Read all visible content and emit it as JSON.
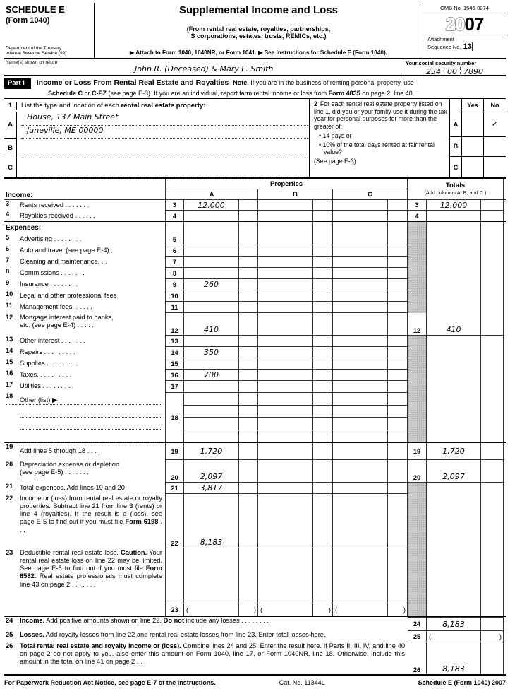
{
  "header": {
    "schedule": "SCHEDULE E",
    "form": "(Form 1040)",
    "dept1": "Department of the Treasury",
    "dept2": "Internal Revenue Service    (99)",
    "title": "Supplemental Income and Loss",
    "subtitle1": "(From rental real estate, royalties, partnerships,",
    "subtitle2": "S corporations, estates, trusts, REMICs, etc.)",
    "attach_line": "▶ Attach to Form 1040, 1040NR, or Form 1041.    ▶ See Instructions for Schedule E (Form 1040).",
    "omb": "OMB No. 1545-0074",
    "year_light": "20",
    "year_bold": "07",
    "attachment": "Attachment",
    "sequence": "Sequence No.",
    "sequence_no": "13"
  },
  "name_row": {
    "label": "Name(s) shown on return",
    "value": "John R. (Deceased) & Mary L. Smith",
    "ssn_label": "Your social security number",
    "ssn1": "234",
    "ssn2": "00",
    "ssn3": "7890"
  },
  "part1": {
    "badge": "Part I",
    "title": "Income or Loss From Rental Real Estate and Royalties",
    "note_line1_segs": [
      {
        "t": "Note.",
        "b": true
      },
      {
        "t": " If you are in the business of renting personal property, use"
      }
    ],
    "note_line2_segs": [
      {
        "t": "Schedule C",
        "b": true
      },
      {
        "t": " or "
      },
      {
        "t": "C-EZ",
        "b": true
      },
      {
        "t": " (see page E-3). If you are an individual, report farm rental income or loss from "
      },
      {
        "t": "Form 4835",
        "b": true
      },
      {
        "t": " on page 2, line 40."
      }
    ]
  },
  "property_section": {
    "line1_num": "1",
    "line1_segs": [
      {
        "t": "List the type and location of each "
      },
      {
        "t": "rental real estate property:",
        "b": true
      }
    ],
    "rowA": {
      "letter": "A",
      "line1": "House, 137 Main Street",
      "line2": "Juneville, ME 00000"
    },
    "rowB": {
      "letter": "B"
    },
    "rowC": {
      "letter": "C"
    },
    "q2_num": "2",
    "q2_text": "For each rental real estate property listed on line 1, did you or your family use it during the tax year for personal purposes for more than the greater of:",
    "bullet1": "• 14 days or",
    "bullet2": "• 10% of the total days rented at fair rental value?",
    "see_note": "(See page E-3)",
    "yes_label": "Yes",
    "no_label": "No",
    "check_a_no": "✓",
    "yn_a": "A",
    "yn_b": "B",
    "yn_c": "C"
  },
  "table": {
    "properties_header": "Properties",
    "totals_title": "Totals",
    "totals_sub": "(Add columns A, B, and C.)",
    "col_a": "A",
    "col_b": "B",
    "col_c": "C",
    "income_label": "Income:",
    "expenses_label": "Expenses:",
    "paren_open": "(",
    "paren_close": ")",
    "rows": {
      "r3": {
        "num": "3",
        "label": "Rents received .   .   .   .   .   .   .",
        "a": "12,000",
        "total": "12,000"
      },
      "r4": {
        "num": "4",
        "label": "Royalties received  .   .   .   .   .   ."
      },
      "r5": {
        "num": "5",
        "label": "Advertising .   .   .   .   .   .   .   ."
      },
      "r6": {
        "num": "6",
        "label": "Auto and travel (see page E-4)   ."
      },
      "r7": {
        "num": "7",
        "label": "Cleaning and maintenance.   .   ."
      },
      "r8": {
        "num": "8",
        "label": "Commissions  .   .   .   .   .   .   ."
      },
      "r9": {
        "num": "9",
        "label": "Insurance   .   .   .   .   .   .   .   .",
        "a": "260"
      },
      "r10": {
        "num": "10",
        "label": "Legal and other professional fees"
      },
      "r11": {
        "num": "11",
        "label": "Management fees.   .   .   .   .   ."
      },
      "r12": {
        "num": "12",
        "label": "Mortgage interest paid to banks,",
        "label2": "etc. (see page E-4)   .   .   .   .   .",
        "a": "410",
        "total": "410"
      },
      "r13": {
        "num": "13",
        "label": "Other interest   .   .   .   .   .   .   ."
      },
      "r14": {
        "num": "14",
        "label": "Repairs  .   .   .   .   .   .   .   .   .",
        "a": "350"
      },
      "r15": {
        "num": "15",
        "label": "Supplies .   .   .   .   .   .   .   .   ."
      },
      "r16": {
        "num": "16",
        "label": "Taxes.   .   .   .   .   .   .   .   .   .",
        "a": "700"
      },
      "r17": {
        "num": "17",
        "label": "Utilities   .   .   .   .   .   .   .   .   ."
      },
      "r18": {
        "num": "18",
        "label": "Other (list) ▶"
      },
      "r19": {
        "num": "19",
        "label": "Add lines 5 through 18 .   .   .   .",
        "a": "1,720",
        "total": "1,720"
      },
      "r20": {
        "num": "20",
        "label": "Depreciation expense or depletion",
        "label2": "(see page E-5)  .   .   .   .   .   .   .",
        "a": "2,097",
        "total": "2,097"
      },
      "r21": {
        "num": "21",
        "label": "Total expenses. Add lines 19 and 20",
        "a": "3,817"
      },
      "r22": {
        "num": "22",
        "a": "8,183",
        "label_segs": [
          {
            "t": "Income or (loss) from rental real estate or royalty properties. Subtract line 21 from line 3 (rents) or line 4 (royalties). If the result is a (loss), see page E-5 to find out if you must file "
          },
          {
            "t": "Form 6198",
            "b": true
          },
          {
            "t": "   .   .   ."
          }
        ]
      },
      "r23": {
        "num": "23",
        "label_segs": [
          {
            "t": "Deductible rental real estate loss. "
          },
          {
            "t": "Caution.",
            "b": true
          },
          {
            "t": " Your rental real estate loss on line 22 may be limited. See page E-5 to find out if you must file "
          },
          {
            "t": "Form 8582.",
            "b": true
          },
          {
            "t": " Real estate professionals must complete line 43 on page 2  .   .   .   .   .   .   ."
          }
        ]
      },
      "r24": {
        "num": "24",
        "total": "8,183",
        "label_segs": [
          {
            "t": "Income.",
            "b": true
          },
          {
            "t": " Add positive amounts shown on line 22. "
          },
          {
            "t": "Do not",
            "b": true
          },
          {
            "t": " include any losses  .   .   .   .   .   .   .   ."
          }
        ]
      },
      "r25": {
        "num": "25",
        "label_segs": [
          {
            "t": "Losses.",
            "b": true
          },
          {
            "t": " Add royalty losses from line 22 and rental real estate losses from line 23. Enter total losses here."
          }
        ]
      },
      "r26": {
        "num": "26",
        "total": "8,183",
        "label_segs": [
          {
            "t": "Total rental real estate and royalty income or (loss).",
            "b": true
          },
          {
            "t": " Combine lines 24 and 25. Enter the result here. If Parts II, III, IV, and line 40 on page 2 do not apply to you, also enter this amount on Form 1040, line 17, or Form 1040NR, line 18. Otherwise, include this amount in the total on line 41 on page 2  .   ."
          }
        ]
      }
    }
  },
  "footer": {
    "left": "For Paperwork Reduction Act Notice, see page E-7 of the instructions.",
    "cat": "Cat. No. 11344L",
    "right": "Schedule E (Form 1040) 2007"
  }
}
